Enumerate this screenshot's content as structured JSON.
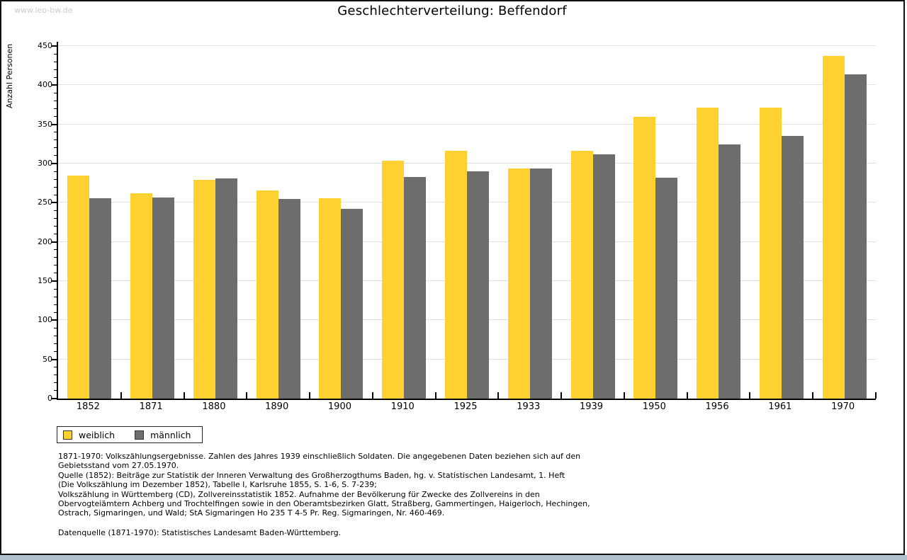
{
  "watermark": "www.leo-bw.de",
  "title": "Geschlechterverteilung: Beffendorf",
  "chart_data": {
    "type": "bar",
    "title": "Geschlechterverteilung: Beffendorf",
    "xlabel": "",
    "ylabel": "Anzahl Personen",
    "ylim": [
      0,
      450
    ],
    "ytick_step": 50,
    "minor_tick_step": 10,
    "grid": true,
    "legend_position": "bottom-left",
    "categories": [
      "1852",
      "1871",
      "1880",
      "1890",
      "1900",
      "1910",
      "1925",
      "1933",
      "1939",
      "1950",
      "1956",
      "1961",
      "1970"
    ],
    "series": [
      {
        "name": "weiblich",
        "color": "#fdd230",
        "values": [
          285,
          262,
          279,
          266,
          256,
          304,
          316,
          294,
          316,
          360,
          371,
          371,
          437
        ]
      },
      {
        "name": "männlich",
        "color": "#6d6d6d",
        "values": [
          256,
          257,
          281,
          255,
          242,
          283,
          290,
          294,
          312,
          282,
          324,
          335,
          414
        ]
      }
    ]
  },
  "footnotes": {
    "para1_lines": [
      "1871-1970: Volkszählungsergebnisse. Zahlen des Jahres 1939 einschließlich Soldaten. Die angegebenen Daten beziehen sich auf den",
      "Gebietsstand vom 27.05.1970.",
      "Quelle (1852): Beiträge zur Statistik der Inneren Verwaltung des Großherzogthums Baden, hg. v. Statistischen Landesamt, 1. Heft",
      "(Die Volkszählung im Dezember 1852), Tabelle I, Karlsruhe 1855, S. 1-6, S. 7-239;",
      "Volkszählung in Württemberg (CD), Zollvereinsstatistik 1852. Aufnahme der Bevölkerung für Zwecke des Zollvereins in den",
      "Obervogteiämtern Achberg und Trochtelfingen sowie in den Oberamtsbezirken Glatt, Straßberg, Gammertingen, Haigerloch, Hechingen,",
      "Ostrach, Sigmaringen, und Wald; StA Sigmaringen Ho 235 T 4-5 Pr. Reg. Sigmaringen, Nr. 460-469."
    ],
    "para2": "Datenquelle (1871-1970): Statistisches Landesamt Baden-Württemberg."
  },
  "colors": {
    "grid": "#e0e0e0",
    "axis": "#000000",
    "watermark": "#cccccc",
    "bottom_strip": "#b3c1cc",
    "weiblich": "#fdd230",
    "männlich": "#6d6d6d"
  }
}
